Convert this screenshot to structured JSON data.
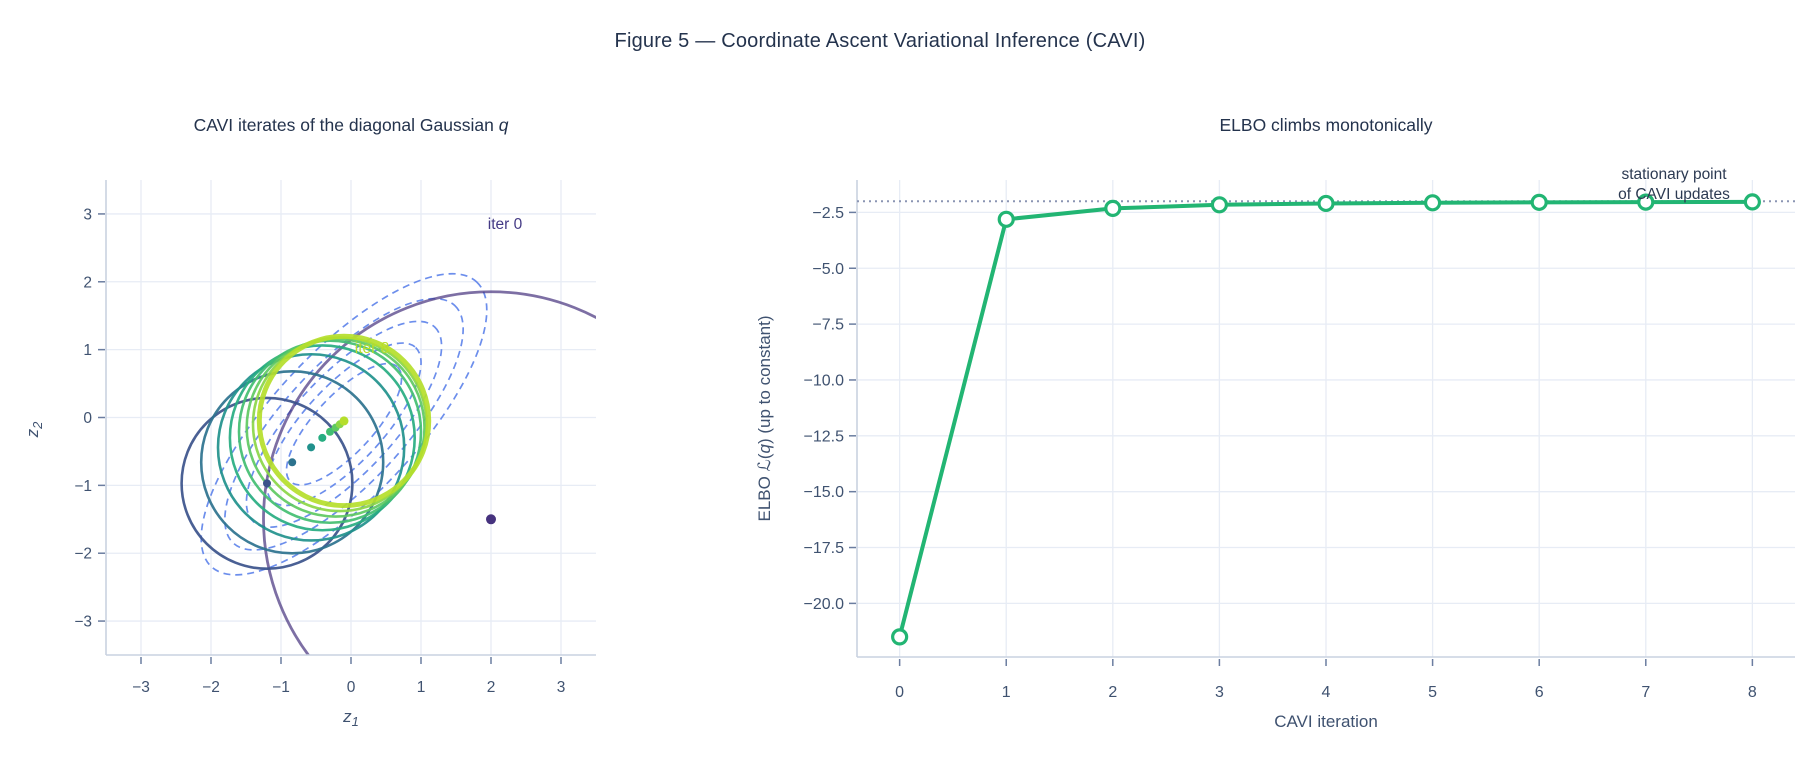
{
  "figure_title": "Figure 5 — Coordinate Ascent Variational Inference (CAVI)",
  "colors": {
    "title_text": "#24334d",
    "tick_text": "#3f5270",
    "grid": "#e7ecf5",
    "axis_line": "#c9d2e0",
    "target_contour": "#5c82ea",
    "elbo_line": "#22b573",
    "marker_fill": "#ffffff",
    "stationary_line": "#8b95b3",
    "annotation_text": "#2c3a52"
  },
  "chart_data": [
    {
      "type": "scatter",
      "id": "cavi-iterates",
      "title_prefix": "CAVI iterates of the diagonal Gaussian ",
      "title_italic": "q",
      "xlabel_base": "z",
      "xlabel_sub": "1",
      "ylabel_base": "z",
      "ylabel_sub": "2",
      "xlim": [
        -3.5,
        3.5
      ],
      "ylim": [
        -3.5,
        3.5
      ],
      "xticks": [
        -3,
        -2,
        -1,
        0,
        1,
        2,
        3
      ],
      "yticks": [
        -3,
        -2,
        -1,
        0,
        1,
        2,
        3
      ],
      "grid": true,
      "target_contours": {
        "center": [
          -0.1,
          -0.1
        ],
        "angle_deg": 47,
        "semi_major": [
          2.78,
          2.32,
          1.9,
          1.5,
          1.12
        ],
        "aspect": 0.37,
        "line_style": "dashed"
      },
      "iterates": [
        {
          "iter": 0,
          "mean": [
            2.0,
            -1.5
          ],
          "radius": 3.25,
          "color": "#46327e"
        },
        {
          "iter": 1,
          "mean": [
            -1.2,
            -0.97
          ],
          "radius": 1.22,
          "color": "#3b528b"
        },
        {
          "iter": 2,
          "mean": [
            -0.84,
            -0.66
          ],
          "radius": 1.3,
          "color": "#2c728e"
        },
        {
          "iter": 3,
          "mean": [
            -0.57,
            -0.44
          ],
          "radius": 1.33,
          "color": "#21918c"
        },
        {
          "iter": 4,
          "mean": [
            -0.41,
            -0.3
          ],
          "radius": 1.32,
          "color": "#27ad81"
        },
        {
          "iter": 5,
          "mean": [
            -0.3,
            -0.21
          ],
          "radius": 1.3,
          "color": "#42be71"
        },
        {
          "iter": 6,
          "mean": [
            -0.22,
            -0.15
          ],
          "radius": 1.27,
          "color": "#5ec962"
        },
        {
          "iter": 7,
          "mean": [
            -0.16,
            -0.1
          ],
          "radius": 1.24,
          "color": "#8bd646"
        },
        {
          "iter": 8,
          "mean": [
            -0.1,
            -0.05
          ],
          "radius": 1.21,
          "color": "#b5de2b"
        }
      ],
      "labels": [
        {
          "text": "iter 0",
          "x": 2.2,
          "y": 2.78,
          "color": "#443a85"
        },
        {
          "text": "iter 8",
          "x": 0.3,
          "y": 0.95,
          "color": "#b9dd28"
        }
      ]
    },
    {
      "type": "line",
      "id": "elbo",
      "title": "ELBO climbs monotonically",
      "xlabel": "CAVI iteration",
      "ylabel_parts": [
        {
          "text": "ELBO ",
          "italic": false,
          "script": false
        },
        {
          "text": "ℒ",
          "italic": false,
          "script": true
        },
        {
          "text": "(",
          "italic": false,
          "script": false
        },
        {
          "text": "q",
          "italic": true,
          "script": false
        },
        {
          "text": ")",
          "italic": false,
          "script": false
        },
        {
          "text": "  (up to constant)",
          "italic": false,
          "script": false
        }
      ],
      "x": [
        0,
        1,
        2,
        3,
        4,
        5,
        6,
        7,
        8
      ],
      "y": [
        -21.5,
        -2.81,
        -2.32,
        -2.16,
        -2.1,
        -2.07,
        -2.05,
        -2.04,
        -2.03
      ],
      "xlim": [
        -0.4,
        8.4
      ],
      "ylim": [
        -22.4,
        -1.05
      ],
      "xticks": [
        0,
        1,
        2,
        3,
        4,
        5,
        6,
        7,
        8
      ],
      "yticks": [
        -2.5,
        -5.0,
        -7.5,
        -10.0,
        -12.5,
        -15.0,
        -17.5,
        -20.0
      ],
      "ytick_labels": [
        "−2.5",
        "−5.0",
        "−7.5",
        "−10.0",
        "−12.5",
        "−15.0",
        "−17.5",
        "−20.0"
      ],
      "grid": true,
      "stationary": {
        "y": -2.0,
        "label_lines": [
          "stationary point",
          "of CAVI updates"
        ]
      }
    }
  ]
}
